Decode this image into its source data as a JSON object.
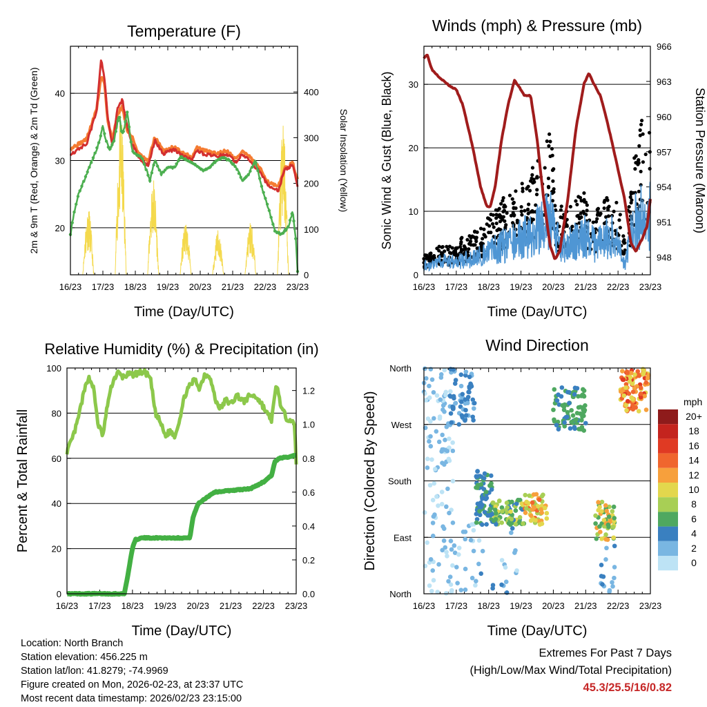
{
  "colors": {
    "temp_red": "#d32f2f",
    "temp_orange": "#f57c32",
    "dewpoint": "#4caf50",
    "solar": "#f4d94c",
    "pressure": "#a01c1c",
    "gust": "#000000",
    "wind": "#4f96d4",
    "rh": "#8cc84b",
    "precip": "#43b043",
    "gridline": "#000000",
    "extreme_text": "#c62828"
  },
  "days": [
    "16/23",
    "17/23",
    "18/23",
    "19/23",
    "20/23",
    "21/23",
    "22/23",
    "23/23"
  ],
  "footer": {
    "location": "Location: North Branch",
    "elevation": "Station elevation: 456.225 m",
    "latlon": "Station lat/lon: 41.8279; -74.9969",
    "created": "Figure created on Mon, 2026-02-23, at 23:37 UTC",
    "recent": "Most recent data timestamp: 2026/02/23 23:15:00"
  },
  "extremes": {
    "title": "Extremes For Past 7 Days",
    "subtitle": "(High/Low/Max Wind/Total Precipitation)",
    "values": "45.3/25.5/16/0.82"
  },
  "chart_data": [
    {
      "type": "line",
      "title": "Temperature (F)",
      "xlabel": "Time (Day/UTC)",
      "ylabel": "2m & 9m T (Red, Orange) & 2m Td (Green)",
      "y2label": "Solar Insolation (Yellow)",
      "xlim": [
        0,
        7
      ],
      "ylim": [
        13,
        47
      ],
      "y2lim": [
        0,
        500
      ],
      "yticks": [
        20,
        30,
        40
      ],
      "y2ticks": [
        0,
        100,
        200,
        300,
        400
      ],
      "series": [
        {
          "name": "9m T",
          "color": "#f57c32",
          "width": 4,
          "x": [
            0,
            0.2,
            0.5,
            0.8,
            0.95,
            1.05,
            1.15,
            1.3,
            1.45,
            1.6,
            1.75,
            1.9,
            2.1,
            2.4,
            2.6,
            2.85,
            3.2,
            3.5,
            3.75,
            3.9,
            4.1,
            4.5,
            4.8,
            5.1,
            5.3,
            5.5,
            5.85,
            6.1,
            6.4,
            6.6,
            6.85,
            7.0
          ],
          "values": [
            31.8,
            32.3,
            33.2,
            37.5,
            42.5,
            41.5,
            36,
            33,
            37,
            38,
            34.5,
            33.5,
            31,
            29.8,
            33.5,
            31.5,
            32,
            31,
            30.5,
            32,
            31.5,
            31,
            31.5,
            30.2,
            31.4,
            30.6,
            28.7,
            26.8,
            26,
            28.8,
            29.6,
            27
          ]
        },
        {
          "name": "2m T",
          "color": "#d32f2f",
          "width": 3,
          "x": [
            0,
            0.2,
            0.5,
            0.8,
            0.95,
            1.05,
            1.15,
            1.3,
            1.45,
            1.6,
            1.75,
            1.9,
            2.1,
            2.4,
            2.6,
            2.85,
            3.2,
            3.5,
            3.75,
            3.9,
            4.1,
            4.5,
            4.8,
            5.1,
            5.3,
            5.5,
            5.85,
            6.1,
            6.4,
            6.6,
            6.85,
            7.0
          ],
          "values": [
            31,
            31.5,
            32.5,
            37.2,
            45.3,
            42,
            36.5,
            32,
            37.8,
            39,
            35,
            32.5,
            30.5,
            29.2,
            33,
            31,
            31.6,
            30.6,
            30,
            31.6,
            31,
            30.6,
            31,
            29.8,
            31,
            30.2,
            28.2,
            26.2,
            25.5,
            28.5,
            29.5,
            26
          ]
        },
        {
          "name": "2m Td",
          "color": "#4caf50",
          "width": 2.5,
          "dots": true,
          "x": [
            0,
            0.1,
            0.25,
            0.5,
            0.75,
            0.9,
            1.0,
            1.1,
            1.2,
            1.35,
            1.5,
            1.6,
            1.75,
            1.9,
            2.0,
            2.2,
            2.45,
            2.6,
            2.8,
            3.0,
            3.2,
            3.4,
            3.6,
            3.8,
            3.95,
            4.1,
            4.3,
            4.5,
            4.7,
            4.9,
            5.1,
            5.3,
            5.5,
            5.7,
            5.9,
            6.1,
            6.3,
            6.5,
            6.7,
            6.85,
            6.95,
            7.0
          ],
          "values": [
            19,
            22,
            25,
            28,
            31,
            33,
            35,
            33,
            31.5,
            33,
            37,
            33.5,
            37.2,
            31.5,
            31,
            30.5,
            27,
            30,
            28,
            29,
            29,
            30.5,
            30,
            29.5,
            29,
            28.5,
            29,
            30,
            30.5,
            30,
            29,
            27,
            28,
            30,
            26,
            23,
            19.5,
            19,
            20,
            22.5,
            18,
            13.5
          ]
        }
      ],
      "solar": {
        "name": "Solar Insolation",
        "color": "#f4d94c",
        "peaks": [
          {
            "x": 0.55,
            "value": 150
          },
          {
            "x": 1.55,
            "value": 360
          },
          {
            "x": 2.55,
            "value": 220
          },
          {
            "x": 3.55,
            "value": 120
          },
          {
            "x": 4.55,
            "value": 100
          },
          {
            "x": 5.55,
            "value": 120
          },
          {
            "x": 6.55,
            "value": 330
          }
        ]
      }
    },
    {
      "type": "line",
      "title": "Winds (mph) & Pressure (mb)",
      "xlabel": "Time (Day/UTC)",
      "ylabel": "Sonic Wind & Gust (Blue, Black)",
      "y2label": "Station Pressure (Maroon)",
      "xlim": [
        0,
        7
      ],
      "ylim": [
        0,
        36
      ],
      "y2lim": [
        946.5,
        966
      ],
      "yticks": [
        0,
        10,
        20,
        30
      ],
      "y2ticks": [
        948,
        951,
        954,
        957,
        960,
        963,
        966
      ],
      "series": [
        {
          "name": "Station Pressure",
          "color": "#a01c1c",
          "width": 4,
          "axis": "right",
          "x": [
            0,
            0.1,
            0.25,
            0.5,
            0.8,
            1.0,
            1.2,
            1.5,
            1.75,
            1.95,
            2.05,
            2.2,
            2.4,
            2.6,
            2.8,
            2.95,
            3.1,
            3.3,
            3.5,
            3.7,
            3.9,
            4.05,
            4.2,
            4.45,
            4.7,
            4.95,
            5.1,
            5.25,
            5.45,
            5.6,
            5.8,
            6.0,
            6.2,
            6.4,
            6.55,
            6.75,
            6.9,
            7.0
          ],
          "values": [
            965,
            965.3,
            964,
            963.3,
            962.6,
            962.3,
            961,
            957.5,
            954,
            952.3,
            952.3,
            954,
            958,
            961,
            963.1,
            962.5,
            961.8,
            961.8,
            958,
            953,
            949,
            947.8,
            948.5,
            953,
            959,
            962.8,
            963.7,
            962.8,
            961.8,
            960.3,
            958,
            955.5,
            953,
            949.2,
            948.5,
            949.6,
            950.7,
            953
          ]
        },
        {
          "name": "Sonic Wind",
          "color": "#4f96d4",
          "width": 2.5,
          "x": [
            0,
            0.3,
            0.6,
            0.9,
            1.2,
            1.5,
            1.8,
            2.1,
            2.4,
            2.7,
            3.0,
            3.3,
            3.6,
            3.9,
            4.1,
            4.4,
            4.7,
            5.0,
            5.3,
            5.6,
            5.8,
            6.0,
            6.2,
            6.4,
            6.55,
            6.7,
            6.85,
            7.0
          ],
          "values": [
            2,
            2,
            3,
            2.5,
            3,
            3.5,
            4,
            5,
            6,
            6.5,
            7.5,
            8.5,
            10,
            12,
            7,
            6,
            7,
            8,
            6,
            7.5,
            8,
            6,
            2,
            8,
            11,
            12,
            10,
            13
          ]
        },
        {
          "name": "Gust",
          "color": "#000000",
          "dots": true,
          "x": [
            0,
            0.3,
            0.6,
            0.9,
            1.2,
            1.5,
            1.8,
            2.1,
            2.4,
            2.7,
            3.0,
            3.3,
            3.6,
            3.8,
            3.95,
            4.1,
            4.4,
            4.7,
            5.0,
            5.3,
            5.6,
            5.8,
            6.0,
            6.2,
            6.4,
            6.55,
            6.7,
            6.85,
            7.0
          ],
          "values": [
            3,
            3.5,
            4.5,
            4,
            5.5,
            6,
            7,
            9,
            11,
            12,
            13,
            15,
            18,
            22,
            20,
            11,
            9,
            11,
            12,
            9,
            12,
            13,
            11,
            5,
            14,
            19,
            23,
            21,
            25
          ]
        }
      ]
    },
    {
      "type": "line",
      "title": "Relative Humidity (%) & Precipitation (in)",
      "xlabel": "Time (Day/UTC)",
      "ylabel": "Percent & Total Rainfall",
      "xlim": [
        0,
        7
      ],
      "ylim": [
        0,
        100
      ],
      "y2lim": [
        0,
        1.333
      ],
      "yticks": [
        0,
        20,
        40,
        60,
        80,
        100
      ],
      "y2ticks": [
        0.0,
        0.2,
        0.4,
        0.6,
        0.8,
        1.0,
        1.2
      ],
      "series": [
        {
          "name": "Relative Humidity",
          "color": "#8cc84b",
          "width": 5,
          "x": [
            0,
            0.15,
            0.3,
            0.5,
            0.65,
            0.8,
            0.95,
            1.1,
            1.25,
            1.4,
            1.55,
            1.7,
            1.85,
            2.0,
            2.2,
            2.4,
            2.55,
            2.7,
            2.85,
            3.0,
            3.15,
            3.3,
            3.45,
            3.6,
            3.75,
            3.9,
            4.05,
            4.2,
            4.35,
            4.55,
            4.7,
            4.85,
            5.0,
            5.2,
            5.4,
            5.6,
            5.8,
            5.95,
            6.1,
            6.25,
            6.4,
            6.55,
            6.7,
            6.85,
            6.95,
            7.0
          ],
          "values": [
            63,
            68,
            75,
            88,
            96,
            92,
            75,
            70,
            85,
            94,
            98,
            96,
            97,
            97,
            98,
            98,
            95,
            80,
            76,
            70,
            72,
            70,
            78,
            88,
            92,
            95,
            91,
            97,
            97,
            85,
            82,
            86,
            84,
            88,
            85,
            88,
            87,
            84,
            80,
            77,
            93,
            82,
            78,
            77,
            74,
            58
          ]
        },
        {
          "name": "Total Precipitation",
          "color": "#43b043",
          "width": 7,
          "axis": "right",
          "x": [
            0,
            1.0,
            1.75,
            1.85,
            2.0,
            2.1,
            2.3,
            3.0,
            3.75,
            3.85,
            4.0,
            4.2,
            4.5,
            5.0,
            5.6,
            5.8,
            6.0,
            6.25,
            6.35,
            6.5,
            6.8,
            7.0
          ],
          "values": [
            0,
            0,
            0,
            0.1,
            0.27,
            0.32,
            0.33,
            0.33,
            0.33,
            0.45,
            0.53,
            0.56,
            0.6,
            0.61,
            0.62,
            0.64,
            0.66,
            0.7,
            0.78,
            0.8,
            0.81,
            0.82
          ]
        }
      ]
    },
    {
      "type": "scatter",
      "title": "Wind Direction",
      "xlabel": "Time (Day/UTC)",
      "ylabel": "Direction (Colored By Speed)",
      "xlim": [
        0,
        7
      ],
      "ylim": [
        0,
        360
      ],
      "ytick_labels": [
        "North",
        "East",
        "South",
        "West",
        "North"
      ],
      "colorbar": {
        "title": "mph",
        "labels": [
          "20+",
          "18",
          "16",
          "14",
          "12",
          "10",
          "8",
          "6",
          "4",
          "2",
          "0"
        ],
        "colors": [
          "#8e1b1b",
          "#c4241e",
          "#e03a23",
          "#f0662e",
          "#f7a03c",
          "#e3d74d",
          "#a8cf55",
          "#4fa860",
          "#3a80c0",
          "#79b6e2",
          "#bde3f5"
        ]
      },
      "clusters": [
        {
          "x": [
            0,
            0.9
          ],
          "dir": [
            200,
            360
          ],
          "speed": [
            0,
            3
          ],
          "n": 70
        },
        {
          "x": [
            0,
            0.9
          ],
          "dir": [
            0,
            200
          ],
          "speed": [
            0,
            2
          ],
          "n": 45
        },
        {
          "x": [
            0.8,
            1.6
          ],
          "dir": [
            270,
            360
          ],
          "speed": [
            2,
            5
          ],
          "n": 60
        },
        {
          "x": [
            0.8,
            1.6
          ],
          "dir": [
            0,
            120
          ],
          "speed": [
            0,
            3
          ],
          "n": 25
        },
        {
          "x": [
            1.6,
            2.1
          ],
          "dir": [
            110,
            200
          ],
          "speed": [
            3,
            6
          ],
          "n": 70
        },
        {
          "x": [
            2.1,
            3.1
          ],
          "dir": [
            110,
            150
          ],
          "speed": [
            4,
            10
          ],
          "n": 90
        },
        {
          "x": [
            3.1,
            3.8
          ],
          "dir": [
            110,
            160
          ],
          "speed": [
            7,
            14
          ],
          "n": 55
        },
        {
          "x": [
            1.6,
            3.0
          ],
          "dir": [
            0,
            110
          ],
          "speed": [
            0,
            4
          ],
          "n": 20
        },
        {
          "x": [
            4.0,
            5.0
          ],
          "dir": [
            260,
            330
          ],
          "speed": [
            4,
            7
          ],
          "n": 85
        },
        {
          "x": [
            5.3,
            5.9
          ],
          "dir": [
            80,
            150
          ],
          "speed": [
            5,
            13
          ],
          "n": 55
        },
        {
          "x": [
            5.3,
            5.9
          ],
          "dir": [
            0,
            80
          ],
          "speed": [
            1,
            4
          ],
          "n": 15
        },
        {
          "x": [
            6.05,
            6.95
          ],
          "dir": [
            290,
            360
          ],
          "speed": [
            9,
            17
          ],
          "n": 95
        }
      ]
    }
  ]
}
